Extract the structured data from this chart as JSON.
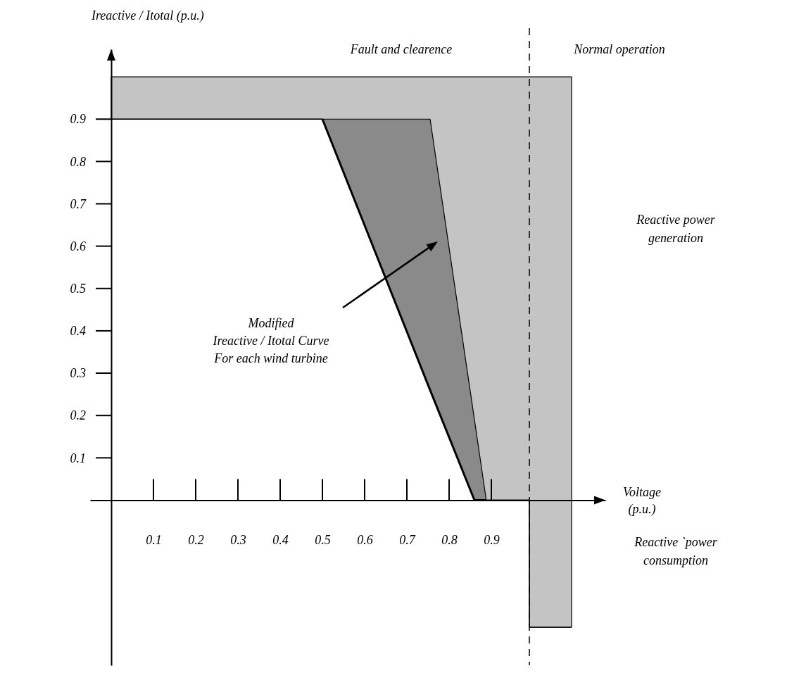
{
  "chart_data": {
    "type": "line",
    "xlabel": "Voltage\n(p.u.)",
    "ylabel": "Ireactive / Itotal  (p.u.)",
    "xlim": [
      -0.05,
      1.17
    ],
    "ylim": [
      -0.39,
      1.065
    ],
    "xticks": [
      0.1,
      0.2,
      0.3,
      0.4,
      0.5,
      0.6,
      0.7,
      0.8,
      0.9
    ],
    "yticks": [
      0.1,
      0.2,
      0.3,
      0.4,
      0.5,
      0.6,
      0.7,
      0.8,
      0.9
    ],
    "grid": false,
    "marker": "none",
    "series": [
      {
        "color": "#000000",
        "x": [
          0,
          0.5,
          0.86,
          0.99,
          0.99,
          1.09
        ],
        "values": [
          0.9,
          0.9,
          0,
          0,
          -0.3,
          -0.3
        ],
        "lower": [
          0.9,
          0.9,
          0,
          0,
          -0.3,
          -0.3
        ],
        "upper": [
          1,
          1,
          1,
          1,
          1,
          1
        ]
      },
      {
        "color": "#000000",
        "x": [
          0.5,
          0.755,
          0.86,
          0.888
        ],
        "values": [
          0.9,
          0.26,
          0,
          0
        ],
        "lower": [
          0.9,
          0.26,
          0,
          0
        ],
        "upper": [
          0.9,
          0.9,
          0.19,
          0
        ]
      }
    ],
    "ref_lines": [
      {
        "axis": "x",
        "value": 0.99,
        "line_style": "dashed",
        "color": "#000000"
      }
    ],
    "annotations": [
      "Fault and clearence",
      "Normal operation",
      "Reactive power\ngeneration",
      "Reactive `power\nconsumption",
      "Modified\nIreactive / Itotal  Curve\nFor each wind turbine"
    ]
  }
}
